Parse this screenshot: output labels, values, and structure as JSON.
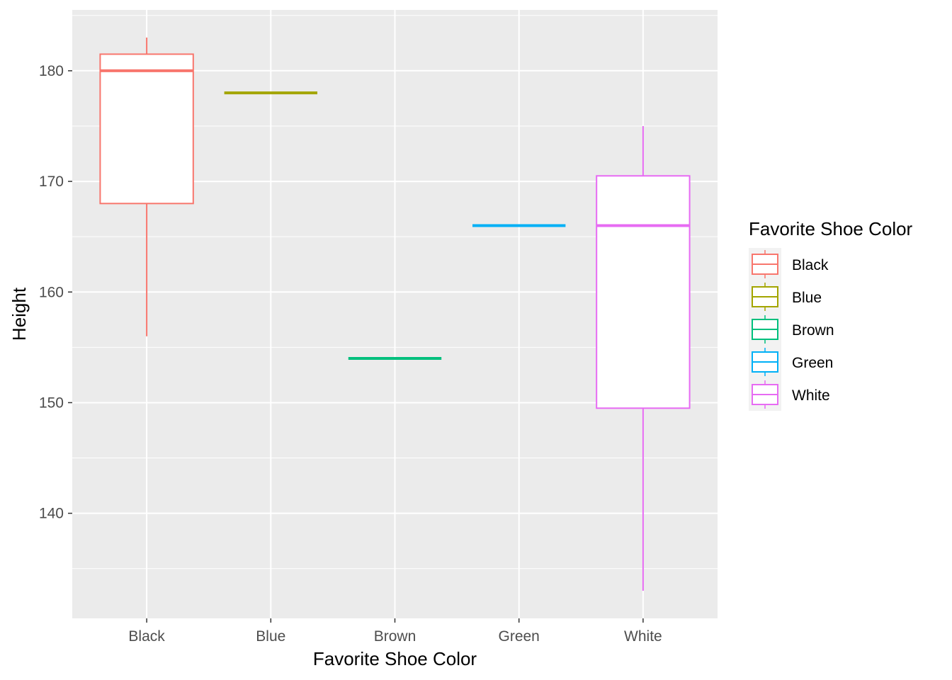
{
  "chart_data": {
    "type": "boxplot",
    "title": "",
    "xlabel": "Favorite Shoe Color",
    "ylabel": "Height",
    "categories": [
      "Black",
      "Blue",
      "Brown",
      "Green",
      "White"
    ],
    "boxes": [
      {
        "category": "Black",
        "min": 156,
        "q1": 168,
        "median": 180,
        "q3": 181.5,
        "max": 183,
        "color": "#F8766D"
      },
      {
        "category": "Blue",
        "min": 178,
        "q1": 178,
        "median": 178,
        "q3": 178,
        "max": 178,
        "color": "#A3A500"
      },
      {
        "category": "Brown",
        "min": 154,
        "q1": 154,
        "median": 154,
        "q3": 154,
        "max": 154,
        "color": "#00BF7D"
      },
      {
        "category": "Green",
        "min": 166,
        "q1": 166,
        "median": 166,
        "q3": 166,
        "max": 166,
        "color": "#00B0F6"
      },
      {
        "category": "White",
        "min": 133,
        "q1": 149.5,
        "median": 166,
        "q3": 170.5,
        "max": 175,
        "color": "#E76BF3"
      }
    ],
    "ylim": [
      130.5,
      185.5
    ],
    "y_ticks": [
      140,
      150,
      160,
      170,
      180
    ],
    "grid": true,
    "legend": {
      "title": "Favorite Shoe Color",
      "position": "right",
      "entries": [
        "Black",
        "Blue",
        "Brown",
        "Green",
        "White"
      ]
    }
  }
}
